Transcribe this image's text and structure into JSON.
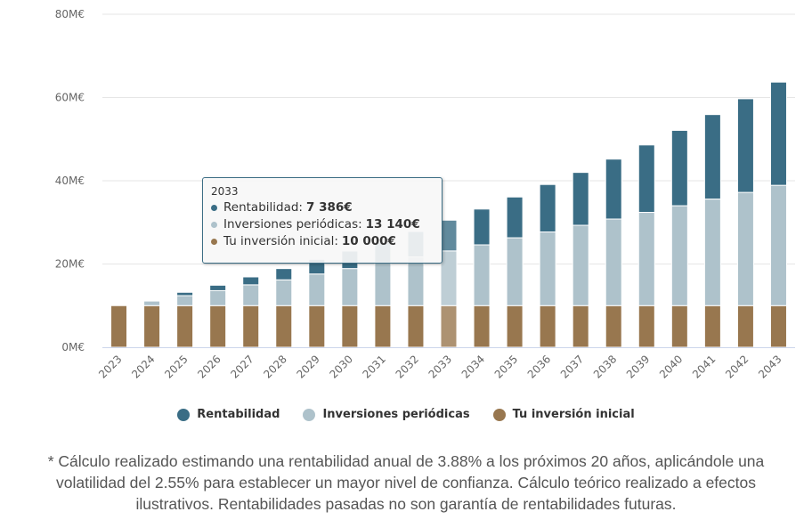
{
  "chart_data": {
    "type": "bar",
    "stacked": true,
    "title": "",
    "xlabel": "",
    "ylabel": "",
    "ylim": [
      0,
      80
    ],
    "y_ticks": [
      {
        "value": 0,
        "label": "0M€"
      },
      {
        "value": 20,
        "label": "20M€"
      },
      {
        "value": 40,
        "label": "40M€"
      },
      {
        "value": 60,
        "label": "60M€"
      },
      {
        "value": 80,
        "label": "80M€"
      }
    ],
    "grid": true,
    "categories": [
      "2023",
      "2024",
      "2025",
      "2026",
      "2027",
      "2028",
      "2029",
      "2030",
      "2031",
      "2032",
      "2033",
      "2034",
      "2035",
      "2036",
      "2037",
      "2038",
      "2039",
      "2040",
      "2041",
      "2042",
      "2043"
    ],
    "series": [
      {
        "name": "Tu inversión inicial",
        "color": "#98774f",
        "values": [
          10,
          10,
          10,
          10,
          10,
          10,
          10,
          10,
          10,
          10,
          10,
          10,
          10,
          10,
          10,
          10,
          10,
          10,
          10,
          10,
          10
        ]
      },
      {
        "name": "Inversiones periódicas",
        "color": "#aec2cb",
        "values": [
          0,
          1.1,
          2.4,
          3.6,
          5.0,
          6.2,
          7.6,
          8.9,
          10.3,
          11.7,
          13.14,
          14.6,
          16.3,
          17.7,
          19.3,
          20.8,
          22.4,
          24.0,
          25.6,
          27.2,
          28.9
        ]
      },
      {
        "name": "Rentabilidad",
        "color": "#3a6d85",
        "values": [
          0,
          0,
          0.8,
          1.3,
          1.9,
          2.7,
          3.5,
          4.2,
          5.0,
          6.1,
          7.386,
          8.6,
          9.8,
          11.4,
          12.7,
          14.4,
          16.2,
          18.1,
          20.3,
          22.5,
          24.8
        ]
      }
    ],
    "highlighted_category": "2033",
    "legend": {
      "position": "bottom",
      "items": [
        {
          "label": "Rentabilidad",
          "color": "#3a6d85"
        },
        {
          "label": "Inversiones periódicas",
          "color": "#aec2cb"
        },
        {
          "label": "Tu inversión inicial",
          "color": "#98774f"
        }
      ]
    }
  },
  "tooltip": {
    "title": "2033",
    "rows": [
      {
        "label": "Rentabilidad:",
        "value": "7 386€",
        "color": "#3a6d85"
      },
      {
        "label": "Inversiones periódicas:",
        "value": "13 140€",
        "color": "#aec2cb"
      },
      {
        "label": "Tu inversión inicial:",
        "value": "10 000€",
        "color": "#98774f"
      }
    ]
  },
  "footnote": "* Cálculo realizado estimando una rentabilidad anual de 3.88% a los próximos 20 años, aplicándole una volatilidad del 2.55% para establecer un mayor nivel de confianza. Cálculo teórico realizado a efectos ilustrativos. Rentabilidades pasadas no son garantía de rentabilidades futuras."
}
